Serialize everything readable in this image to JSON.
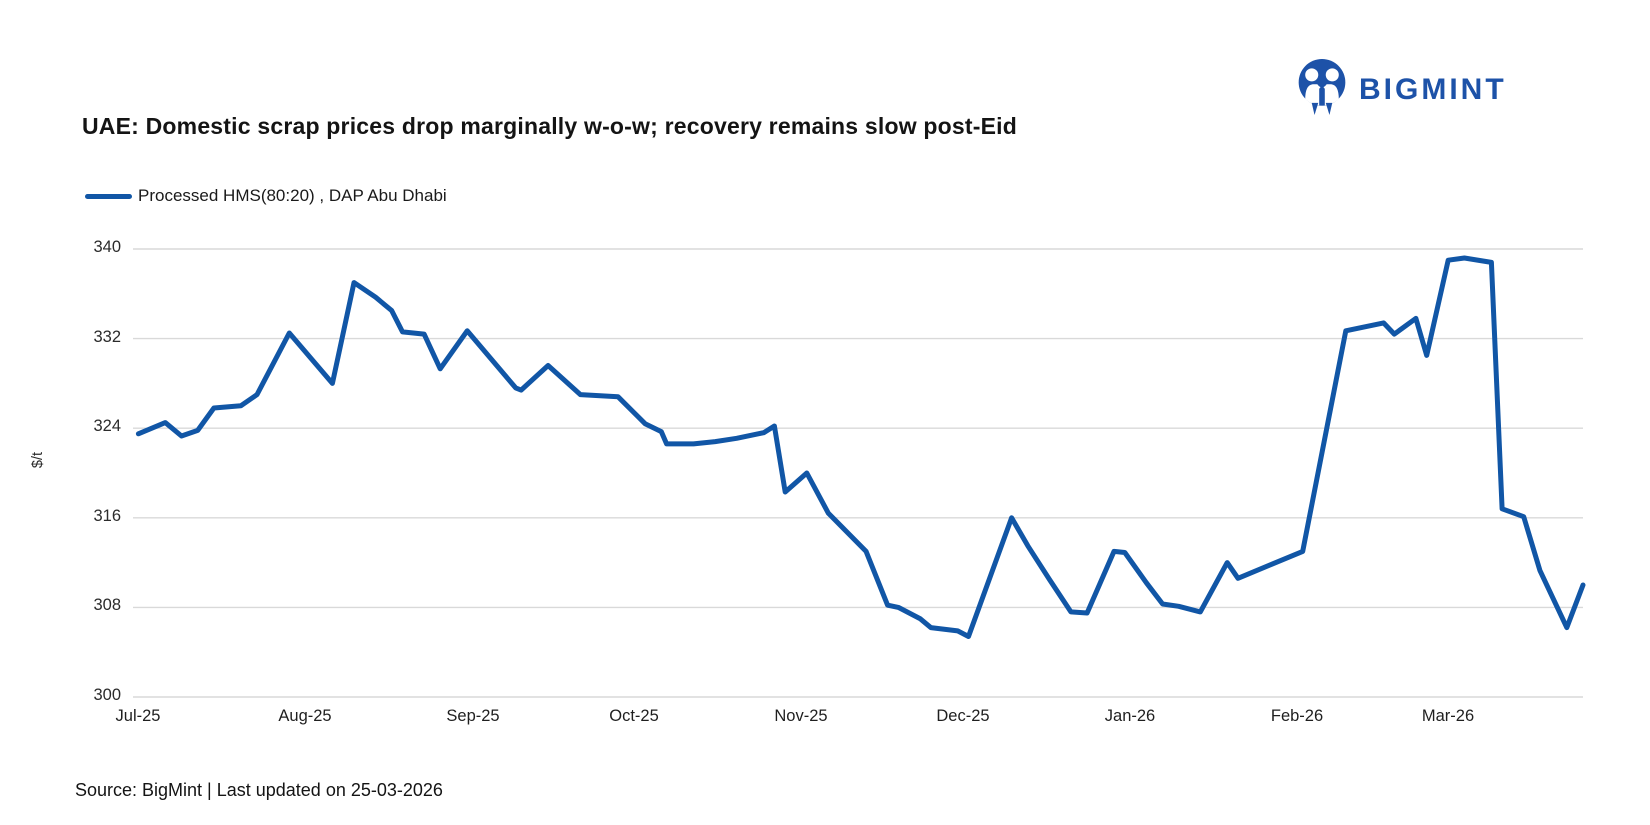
{
  "logo": {
    "text": "BIGMINT",
    "color": "#1d52a8"
  },
  "title": {
    "text": "UAE: Domestic scrap prices drop marginally w-o-w; recovery remains slow post-Eid"
  },
  "source_note": "Source: BigMint | Last updated on 25-03-2026",
  "chart_data": {
    "type": "line",
    "title": "UAE: Domestic scrap prices drop marginally w-o-w; recovery remains slow post-Eid",
    "ylabel": "$/t",
    "ylim": [
      300,
      340
    ],
    "y_ticks": [
      300,
      308,
      316,
      324,
      332,
      340
    ],
    "grid": true,
    "gridline_color": "#d9d9d9",
    "legend_position": "top-left",
    "xlim_days": [
      -1,
      268
    ],
    "x_ticks": [
      {
        "day": 0,
        "label": "Jul-25"
      },
      {
        "day": 31,
        "label": "Aug-25"
      },
      {
        "day": 62,
        "label": "Sep-25"
      },
      {
        "day": 92,
        "label": "Oct-25"
      },
      {
        "day": 123,
        "label": "Nov-25"
      },
      {
        "day": 153,
        "label": "Dec-25"
      },
      {
        "day": 184,
        "label": "Jan-26"
      },
      {
        "day": 215,
        "label": "Feb-26"
      },
      {
        "day": 243,
        "label": "Mar-26"
      }
    ],
    "series": [
      {
        "name": "Processed HMS(80:20) , DAP Abu Dhabi",
        "color": "#1156a6",
        "points": [
          [
            0,
            323.5
          ],
          [
            5,
            324.5
          ],
          [
            8,
            323.3
          ],
          [
            11,
            323.8
          ],
          [
            14,
            325.8
          ],
          [
            19,
            326.0
          ],
          [
            22,
            327.0
          ],
          [
            28,
            332.5
          ],
          [
            36,
            328.0
          ],
          [
            40,
            337.0
          ],
          [
            44,
            335.7
          ],
          [
            47,
            334.5
          ],
          [
            49,
            332.6
          ],
          [
            53,
            332.4
          ],
          [
            56,
            329.3
          ],
          [
            61,
            332.7
          ],
          [
            70,
            327.6
          ],
          [
            71,
            327.4
          ],
          [
            76,
            329.6
          ],
          [
            82,
            327.0
          ],
          [
            89,
            326.8
          ],
          [
            94,
            324.4
          ],
          [
            97,
            323.7
          ],
          [
            98,
            322.6
          ],
          [
            103,
            322.6
          ],
          [
            107,
            322.8
          ],
          [
            111,
            323.1
          ],
          [
            116,
            323.6
          ],
          [
            118,
            324.2
          ],
          [
            120,
            318.3
          ],
          [
            124,
            320.0
          ],
          [
            128,
            316.4
          ],
          [
            135,
            313.0
          ],
          [
            139,
            308.2
          ],
          [
            141,
            308.0
          ],
          [
            145,
            307.0
          ],
          [
            147,
            306.2
          ],
          [
            152,
            305.9
          ],
          [
            154,
            305.4
          ],
          [
            162,
            316.0
          ],
          [
            165,
            313.5
          ],
          [
            169,
            310.5
          ],
          [
            173,
            307.6
          ],
          [
            176,
            307.5
          ],
          [
            181,
            313.0
          ],
          [
            183,
            312.9
          ],
          [
            187,
            310.2
          ],
          [
            190,
            308.3
          ],
          [
            193,
            308.1
          ],
          [
            197,
            307.6
          ],
          [
            202,
            312.0
          ],
          [
            204,
            310.6
          ],
          [
            210,
            311.8
          ],
          [
            216,
            313.0
          ],
          [
            224,
            332.7
          ],
          [
            231,
            333.4
          ],
          [
            233,
            332.4
          ],
          [
            237,
            333.8
          ],
          [
            239,
            330.5
          ],
          [
            243,
            339.0
          ],
          [
            246,
            339.2
          ],
          [
            251,
            338.8
          ],
          [
            253,
            316.8
          ],
          [
            257,
            316.1
          ],
          [
            260,
            311.3
          ],
          [
            265,
            306.2
          ],
          [
            268,
            310.0
          ]
        ]
      }
    ]
  }
}
